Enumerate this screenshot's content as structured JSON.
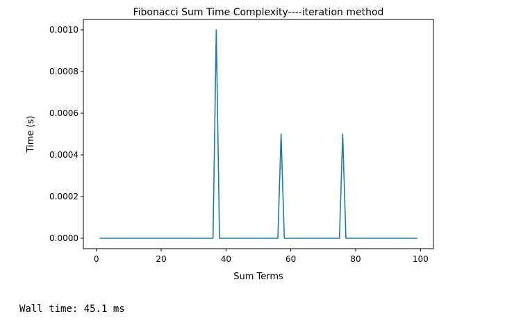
{
  "chart_data": {
    "type": "line",
    "title": "Fibonacci Sum Time Complexity----iteration method",
    "xlabel": "Sum Terms",
    "ylabel": "Time (s)",
    "xlim": [
      -4.0,
      104.0
    ],
    "ylim": [
      -5e-05,
      0.00105
    ],
    "xticks": [
      0,
      20,
      40,
      60,
      80,
      100
    ],
    "xtick_labels": [
      "0",
      "20",
      "40",
      "60",
      "80",
      "100"
    ],
    "yticks": [
      0.0,
      0.0002,
      0.0004,
      0.0006,
      0.0008,
      0.001
    ],
    "ytick_labels": [
      "0.0000",
      "0.0002",
      "0.0004",
      "0.0006",
      "0.0008",
      "0.0010"
    ],
    "grid": false,
    "line_color": "#1f77b4",
    "series": [
      {
        "x": [
          1,
          36,
          37,
          38,
          56,
          57,
          58,
          75,
          76,
          77,
          99
        ],
        "y": [
          0,
          0,
          0.001,
          0,
          0,
          0.0005,
          0,
          0,
          0.0005,
          0,
          0
        ]
      }
    ]
  },
  "output": {
    "wall_time_text": "Wall time: 45.1 ms"
  }
}
